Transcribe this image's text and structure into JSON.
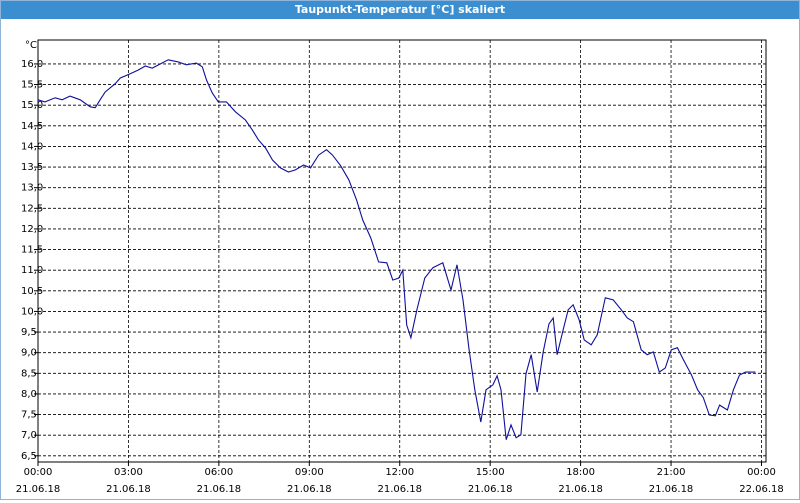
{
  "chart_data": {
    "type": "line",
    "title": "Taupunkt-Temperatur [°C] skaliert",
    "yunit": "°C",
    "x": [
      0,
      0.23,
      0.57,
      0.8,
      1.06,
      1.4,
      1.73,
      1.9,
      2.06,
      2.23,
      2.56,
      2.73,
      3.06,
      3.32,
      3.56,
      3.79,
      4.06,
      4.32,
      4.65,
      4.92,
      5.25,
      5.45,
      5.59,
      5.78,
      5.98,
      6.25,
      6.55,
      6.88,
      7.11,
      7.31,
      7.55,
      7.78,
      8.04,
      8.31,
      8.54,
      8.81,
      9.04,
      9.31,
      9.57,
      9.77,
      10.04,
      10.31,
      10.57,
      10.77,
      11.04,
      11.3,
      11.57,
      11.77,
      11.97,
      12.1,
      12.23,
      12.37,
      12.57,
      12.83,
      13.1,
      13.43,
      13.7,
      13.9,
      14.1,
      14.3,
      14.49,
      14.69,
      14.86,
      15.09,
      15.23,
      15.36,
      15.53,
      15.69,
      15.86,
      16.02,
      16.19,
      16.36,
      16.56,
      16.76,
      16.95,
      17.09,
      17.22,
      17.42,
      17.59,
      17.75,
      17.95,
      18.12,
      18.35,
      18.55,
      18.82,
      19.08,
      19.35,
      19.55,
      19.75,
      20.01,
      20.21,
      20.41,
      20.61,
      20.81,
      21.01,
      21.21,
      21.41,
      21.68,
      21.88,
      22.07,
      22.27,
      22.47,
      22.61,
      22.87,
      23.07,
      23.27,
      23.47,
      23.8
    ],
    "series": [
      {
        "name": "Taupunkt",
        "color": "#10109a",
        "values": [
          15.13,
          15.08,
          15.18,
          15.13,
          15.22,
          15.13,
          14.96,
          14.94,
          15.13,
          15.32,
          15.52,
          15.66,
          15.76,
          15.85,
          15.95,
          15.9,
          16.0,
          16.1,
          16.05,
          15.98,
          16.02,
          15.93,
          15.61,
          15.3,
          15.08,
          15.08,
          14.84,
          14.64,
          14.4,
          14.16,
          13.96,
          13.67,
          13.48,
          13.38,
          13.43,
          13.55,
          13.48,
          13.79,
          13.92,
          13.79,
          13.53,
          13.19,
          12.7,
          12.22,
          11.78,
          11.2,
          11.18,
          10.76,
          10.81,
          11.0,
          9.67,
          9.36,
          10.04,
          10.81,
          11.06,
          11.18,
          10.52,
          11.13,
          10.28,
          9.07,
          8.1,
          7.32,
          8.1,
          8.22,
          8.44,
          8.1,
          6.89,
          7.25,
          6.94,
          7.01,
          8.49,
          8.95,
          8.05,
          9.02,
          9.7,
          9.84,
          8.95,
          9.55,
          10.04,
          10.16,
          9.8,
          9.31,
          9.19,
          9.43,
          10.33,
          10.28,
          10.04,
          9.84,
          9.75,
          9.07,
          8.95,
          9.02,
          8.53,
          8.63,
          9.07,
          9.12,
          8.83,
          8.46,
          8.1,
          7.91,
          7.49,
          7.47,
          7.73,
          7.61,
          8.1,
          8.46,
          8.53,
          8.53
        ]
      }
    ],
    "xlim": [
      0,
      24.15
    ],
    "xticks": [
      {
        "value": 0,
        "label": "00:00",
        "date": "21.06.18"
      },
      {
        "value": 3,
        "label": "03:00",
        "date": "21.06.18"
      },
      {
        "value": 6,
        "label": "06:00",
        "date": "21.06.18"
      },
      {
        "value": 9,
        "label": "09:00",
        "date": "21.06.18"
      },
      {
        "value": 12,
        "label": "12:00",
        "date": "21.06.18"
      },
      {
        "value": 15,
        "label": "15:00",
        "date": "21.06.18"
      },
      {
        "value": 18,
        "label": "18:00",
        "date": "21.06.18"
      },
      {
        "value": 21,
        "label": "21:00",
        "date": "21.06.18"
      },
      {
        "value": 24,
        "label": "00:00",
        "date": "22.06.18"
      }
    ],
    "ylim": [
      6.35,
      16.58
    ],
    "yticks": [
      {
        "value": 6.5,
        "label": "6,5"
      },
      {
        "value": 7,
        "label": "7,0"
      },
      {
        "value": 7.5,
        "label": "7,5"
      },
      {
        "value": 8,
        "label": "8,0"
      },
      {
        "value": 8.5,
        "label": "8,5"
      },
      {
        "value": 9,
        "label": "9,0"
      },
      {
        "value": 9.5,
        "label": "9,5"
      },
      {
        "value": 10,
        "label": "10,0"
      },
      {
        "value": 10.5,
        "label": "10,5"
      },
      {
        "value": 11,
        "label": "11,0"
      },
      {
        "value": 11.5,
        "label": "11,5"
      },
      {
        "value": 12,
        "label": "12,0"
      },
      {
        "value": 12.5,
        "label": "12,5"
      },
      {
        "value": 13,
        "label": "13,0"
      },
      {
        "value": 13.5,
        "label": "13,5"
      },
      {
        "value": 14,
        "label": "14,0"
      },
      {
        "value": 14.5,
        "label": "14,5"
      },
      {
        "value": 15,
        "label": "15,0"
      },
      {
        "value": 15.5,
        "label": "15,5"
      },
      {
        "value": 16,
        "label": "16,0"
      }
    ],
    "grid": true
  }
}
